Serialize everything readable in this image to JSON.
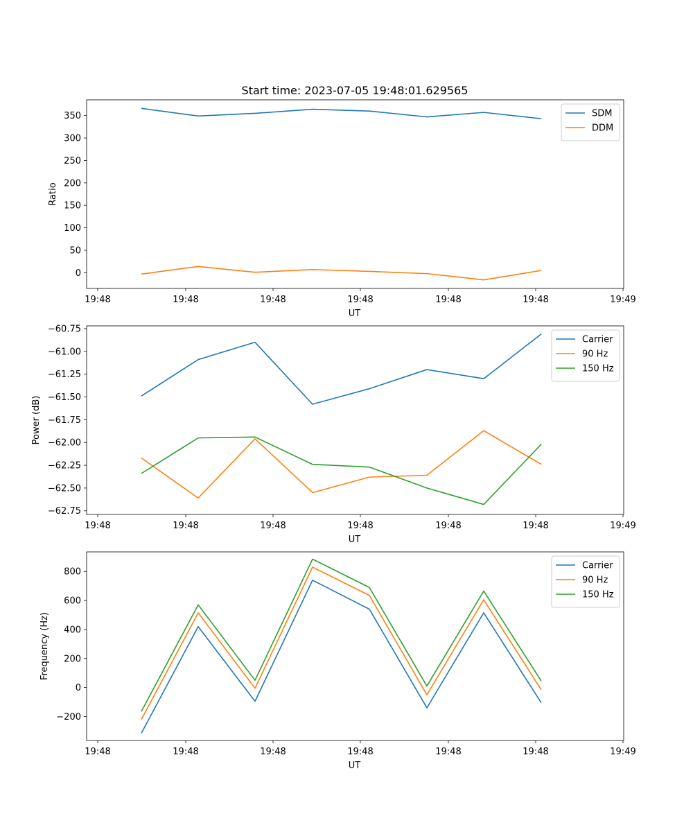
{
  "figure_title": "Start time: 2023-07-05 19:48:01.629565",
  "chart_data": [
    {
      "type": "line",
      "title": "Start time: 2023-07-05 19:48:01.629565",
      "xlabel": "UT",
      "ylabel": "Ratio",
      "x_tick_labels": [
        "19:48",
        "19:48",
        "19:48",
        "19:48",
        "19:48",
        "19:48",
        "19:49"
      ],
      "y_ticks": [
        0,
        50,
        100,
        150,
        200,
        250,
        300,
        350
      ],
      "y_tick_labels": [
        "0",
        "50",
        "100",
        "150",
        "200",
        "250",
        "300",
        "350"
      ],
      "ylim": [
        -35,
        385
      ],
      "legend": "top-right",
      "series": [
        {
          "name": "SDM",
          "color": "#1f77b4",
          "values": [
            366,
            349,
            355,
            364,
            360,
            347,
            357,
            343
          ]
        },
        {
          "name": "DDM",
          "color": "#ff7f0e",
          "values": [
            -3,
            14,
            1,
            7,
            3,
            -2,
            -16,
            5
          ]
        }
      ]
    },
    {
      "type": "line",
      "title": "",
      "xlabel": "UT",
      "ylabel": "Power (dB)",
      "x_tick_labels": [
        "19:48",
        "19:48",
        "19:48",
        "19:48",
        "19:48",
        "19:48",
        "19:49"
      ],
      "y_ticks": [
        -62.75,
        -62.5,
        -62.25,
        -62.0,
        -61.75,
        -61.5,
        -61.25,
        -61.0,
        -60.75
      ],
      "y_tick_labels": [
        "−62.75",
        "−62.50",
        "−62.25",
        "−62.00",
        "−61.75",
        "−61.50",
        "−61.25",
        "−61.00",
        "−60.75"
      ],
      "ylim": [
        -62.79,
        -60.72
      ],
      "legend": "top-right",
      "series": [
        {
          "name": "Carrier",
          "color": "#1f77b4",
          "values": [
            -61.49,
            -61.09,
            -60.9,
            -61.58,
            -61.41,
            -61.2,
            -61.3,
            -60.81
          ]
        },
        {
          "name": "90 Hz",
          "color": "#ff7f0e",
          "values": [
            -62.17,
            -62.61,
            -61.96,
            -62.55,
            -62.38,
            -62.36,
            -61.87,
            -62.24
          ]
        },
        {
          "name": "150 Hz",
          "color": "#2ca02c",
          "values": [
            -62.34,
            -61.95,
            -61.94,
            -62.24,
            -62.27,
            -62.5,
            -62.68,
            -62.02
          ]
        }
      ]
    },
    {
      "type": "line",
      "title": "",
      "xlabel": "UT",
      "ylabel": "Frequency (Hz)",
      "x_tick_labels": [
        "19:48",
        "19:48",
        "19:48",
        "19:48",
        "19:48",
        "19:48",
        "19:49"
      ],
      "y_ticks": [
        -200,
        0,
        200,
        400,
        600,
        800
      ],
      "y_tick_labels": [
        "−200",
        "0",
        "200",
        "400",
        "600",
        "800"
      ],
      "ylim": [
        -365,
        935
      ],
      "legend": "top-right",
      "series": [
        {
          "name": "Carrier",
          "color": "#1f77b4",
          "values": [
            -315,
            420,
            -95,
            740,
            540,
            -140,
            515,
            -105
          ]
        },
        {
          "name": "90 Hz",
          "color": "#ff7f0e",
          "values": [
            -220,
            515,
            -5,
            830,
            635,
            -50,
            605,
            -15
          ]
        },
        {
          "name": "150 Hz",
          "color": "#2ca02c",
          "values": [
            -165,
            570,
            50,
            885,
            690,
            10,
            665,
            45
          ]
        }
      ]
    }
  ]
}
